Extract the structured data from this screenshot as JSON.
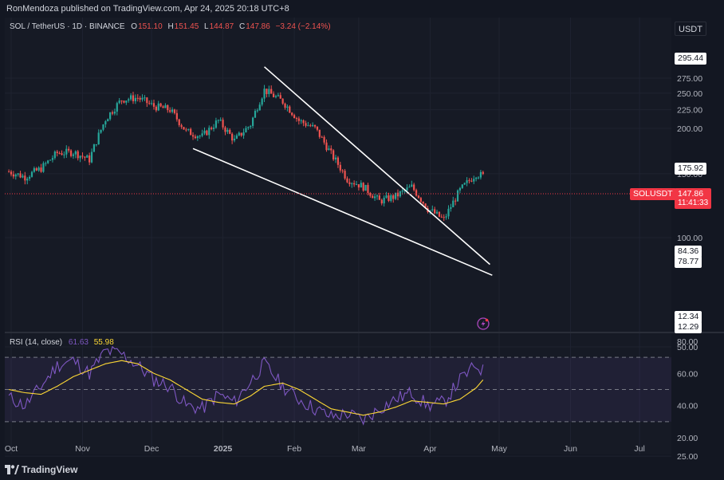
{
  "publisher_line": "RonMendoza published on TradingView.com, Apr 24, 2025 20:18 UTC+8",
  "currency_button": "USDT",
  "legend": {
    "symbol": "SOL / TetherUS · 1D · BINANCE",
    "o_label": "O",
    "o_value": "151.10",
    "h_label": "H",
    "h_value": "151.45",
    "l_label": "L",
    "l_value": "144.87",
    "c_label": "C",
    "c_value": "147.86",
    "change": "−3.24 (−2.14%)"
  },
  "rsi_legend": {
    "label": "RSI (14, close)",
    "rsi_value": "61.63",
    "ma_value": "55.98"
  },
  "price_axis": {
    "ticks": [
      "275.00",
      "250.00",
      "225.00",
      "200.00",
      "150.00",
      "100.00",
      "50.00",
      "25.00"
    ],
    "boxes": [
      {
        "label": "295.44",
        "style": "white"
      },
      {
        "label": "175.92",
        "style": "white"
      },
      {
        "label": "84.36",
        "style": "white"
      },
      {
        "label": "78.77",
        "style": "white"
      },
      {
        "label": "12.34",
        "style": "white"
      },
      {
        "label": "12.29",
        "style": "white"
      }
    ],
    "symbol_tag": "SOLUSDT",
    "last_price": "147.86",
    "countdown": "11:41:33"
  },
  "rsi_axis": {
    "ticks": [
      "80.00",
      "60.00",
      "40.00",
      "20.00"
    ]
  },
  "time_axis": {
    "labels": [
      "Oct",
      "Nov",
      "Dec",
      "2025",
      "Feb",
      "Mar",
      "Apr",
      "May",
      "Jun",
      "Jul"
    ]
  },
  "footer": {
    "brand": "TradingView"
  },
  "colors": {
    "up": "#26a69a",
    "down": "#ef5350",
    "rsi_line": "#7e57c2",
    "rsi_ma": "#fdd835",
    "background": "#161a25",
    "price_line": "#f23645"
  },
  "chart_data": {
    "type": "candlestick",
    "symbol": "SOL / TetherUS",
    "interval": "1D",
    "exchange": "BINANCE",
    "ohlc_last": {
      "open": 151.1,
      "high": 151.45,
      "low": 144.87,
      "close": 147.86
    },
    "price_series_approx": {
      "dates": [
        "2024-09-30",
        "2024-10-07",
        "2024-10-14",
        "2024-10-21",
        "2024-10-28",
        "2024-11-04",
        "2024-11-11",
        "2024-11-18",
        "2024-11-25",
        "2024-12-02",
        "2024-12-09",
        "2024-12-16",
        "2024-12-23",
        "2024-12-30",
        "2025-01-06",
        "2025-01-13",
        "2025-01-19",
        "2025-01-27",
        "2025-02-03",
        "2025-02-10",
        "2025-02-17",
        "2025-02-24",
        "2025-03-03",
        "2025-03-10",
        "2025-03-17",
        "2025-03-24",
        "2025-03-31",
        "2025-04-07",
        "2025-04-14",
        "2025-04-21",
        "2025-04-24"
      ],
      "close": [
        152,
        147,
        155,
        171,
        172,
        164,
        212,
        240,
        243,
        230,
        225,
        196,
        190,
        210,
        185,
        205,
        255,
        237,
        210,
        200,
        170,
        145,
        138,
        126,
        130,
        138,
        120,
        112,
        135,
        150,
        147.86
      ]
    },
    "trendlines": [
      {
        "name": "upper",
        "from": {
          "date": "2025-01-19",
          "price": 295.44
        },
        "to": {
          "date": "2025-04-27",
          "price": 84.36
        }
      },
      {
        "name": "lower",
        "from": {
          "date": "2024-12-19",
          "price": 175.92
        },
        "to": {
          "date": "2025-04-28",
          "price": 78.77
        }
      }
    ],
    "rsi": {
      "period": 14,
      "last": 61.63,
      "ma_last": 55.98,
      "ylim": [
        20,
        80
      ],
      "bands": [
        70,
        50,
        30
      ],
      "values": [
        45,
        40,
        52,
        65,
        68,
        60,
        74,
        72,
        65,
        56,
        52,
        40,
        38,
        47,
        42,
        55,
        66,
        52,
        44,
        38,
        33,
        35,
        31,
        38,
        44,
        48,
        40,
        42,
        56,
        65,
        61.63
      ],
      "ma": [
        50,
        48,
        47,
        52,
        58,
        62,
        66,
        68,
        66,
        60,
        56,
        50,
        44,
        42,
        41,
        46,
        52,
        54,
        50,
        44,
        38,
        36,
        34,
        36,
        39,
        43,
        42,
        41,
        44,
        51,
        55.98
      ]
    },
    "price_ylim": [
      0,
      310
    ],
    "scale": "log",
    "x_axis": [
      "Oct",
      "Nov",
      "Dec",
      "2025",
      "Feb",
      "Mar",
      "Apr",
      "May",
      "Jun",
      "Jul"
    ]
  }
}
